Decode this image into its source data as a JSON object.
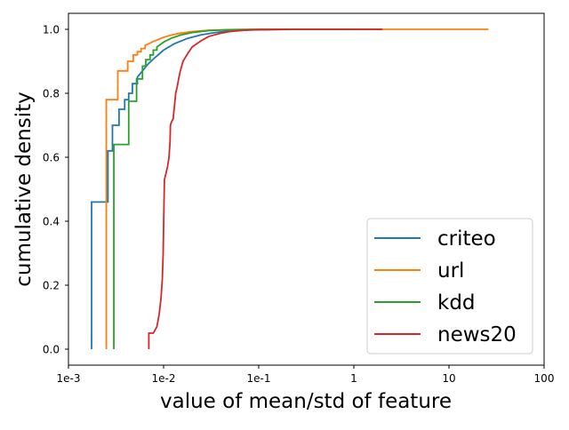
{
  "chart_data": {
    "type": "line",
    "title": "",
    "xlabel": "value of mean/std of feature",
    "ylabel": "cumulative density",
    "x_scale": "log",
    "xlim": [
      0.001,
      100
    ],
    "ylim": [
      -0.05,
      1.05
    ],
    "grid": false,
    "legend_position": "bottom-right",
    "x_ticks": [
      {
        "value": 0.001,
        "label": "1e-3"
      },
      {
        "value": 0.01,
        "label": "1e-2"
      },
      {
        "value": 0.1,
        "label": "1e-1"
      },
      {
        "value": 1,
        "label": "1"
      },
      {
        "value": 10,
        "label": "10"
      },
      {
        "value": 100,
        "label": "100"
      }
    ],
    "y_ticks": [
      {
        "value": 0.0,
        "label": "0.0"
      },
      {
        "value": 0.2,
        "label": "0.2"
      },
      {
        "value": 0.4,
        "label": "0.4"
      },
      {
        "value": 0.6,
        "label": "0.6"
      },
      {
        "value": 0.8,
        "label": "0.8"
      },
      {
        "value": 1.0,
        "label": "1.0"
      }
    ],
    "series": [
      {
        "name": "criteo",
        "color": "#1f77b4",
        "x": [
          0.00175,
          0.00175,
          0.0026,
          0.0026,
          0.0029,
          0.0029,
          0.0034,
          0.0034,
          0.0039,
          0.0039,
          0.0043,
          0.0043,
          0.0047,
          0.0047,
          0.0053,
          0.0053,
          0.006,
          0.0068,
          0.008,
          0.01,
          0.013,
          0.018,
          0.025,
          0.035,
          0.05,
          0.08,
          0.15,
          0.3,
          1.0,
          2.0
        ],
        "y": [
          0.0,
          0.46,
          0.46,
          0.62,
          0.62,
          0.7,
          0.7,
          0.75,
          0.75,
          0.78,
          0.78,
          0.8,
          0.8,
          0.83,
          0.83,
          0.85,
          0.87,
          0.89,
          0.91,
          0.935,
          0.955,
          0.972,
          0.983,
          0.99,
          0.995,
          0.998,
          0.999,
          1.0,
          1.0,
          1.0
        ]
      },
      {
        "name": "url",
        "color": "#ff7f0e",
        "x": [
          0.0025,
          0.0025,
          0.0033,
          0.0033,
          0.0042,
          0.0042,
          0.0048,
          0.0048,
          0.0053,
          0.0053,
          0.0058,
          0.0058,
          0.0064,
          0.0064,
          0.007,
          0.0078,
          0.0088,
          0.01,
          0.012,
          0.015,
          0.02,
          0.03,
          0.05,
          0.1,
          1.0,
          10.0,
          26.0
        ],
        "y": [
          0.0,
          0.78,
          0.78,
          0.87,
          0.87,
          0.9,
          0.9,
          0.92,
          0.92,
          0.93,
          0.93,
          0.94,
          0.94,
          0.95,
          0.955,
          0.962,
          0.968,
          0.975,
          0.982,
          0.988,
          0.993,
          0.997,
          0.999,
          1.0,
          1.0,
          1.0,
          1.0
        ]
      },
      {
        "name": "kdd",
        "color": "#2ca02c",
        "x": [
          0.003,
          0.003,
          0.0043,
          0.0043,
          0.0052,
          0.0052,
          0.006,
          0.006,
          0.0065,
          0.0065,
          0.0072,
          0.0072,
          0.0078,
          0.0078,
          0.0085,
          0.0085,
          0.0092,
          0.01,
          0.012,
          0.015,
          0.02,
          0.03,
          0.05,
          0.1,
          0.3,
          1.0
        ],
        "y": [
          0.0,
          0.64,
          0.64,
          0.775,
          0.775,
          0.845,
          0.845,
          0.885,
          0.885,
          0.905,
          0.905,
          0.92,
          0.92,
          0.935,
          0.935,
          0.945,
          0.952,
          0.96,
          0.972,
          0.982,
          0.99,
          0.996,
          0.999,
          1.0,
          1.0,
          1.0
        ]
      },
      {
        "name": "news20",
        "color": "#d62728",
        "x": [
          0.007,
          0.007,
          0.0078,
          0.0085,
          0.009,
          0.0094,
          0.0097,
          0.0099,
          0.01,
          0.0102,
          0.0105,
          0.011,
          0.0114,
          0.0117,
          0.0118,
          0.0121,
          0.0126,
          0.013,
          0.0134,
          0.0139,
          0.0145,
          0.015,
          0.016,
          0.018,
          0.02,
          0.025,
          0.03,
          0.04,
          0.05,
          0.07,
          0.1,
          0.15,
          0.2,
          0.3,
          0.5,
          1.0,
          2.0
        ],
        "y": [
          0.0,
          0.05,
          0.05,
          0.07,
          0.11,
          0.16,
          0.22,
          0.3,
          0.38,
          0.53,
          0.545,
          0.57,
          0.6,
          0.65,
          0.7,
          0.71,
          0.72,
          0.76,
          0.8,
          0.82,
          0.85,
          0.87,
          0.9,
          0.925,
          0.945,
          0.965,
          0.978,
          0.988,
          0.993,
          0.997,
          0.999,
          0.9995,
          1.0,
          1.0,
          1.0,
          1.0,
          1.0
        ]
      }
    ]
  }
}
